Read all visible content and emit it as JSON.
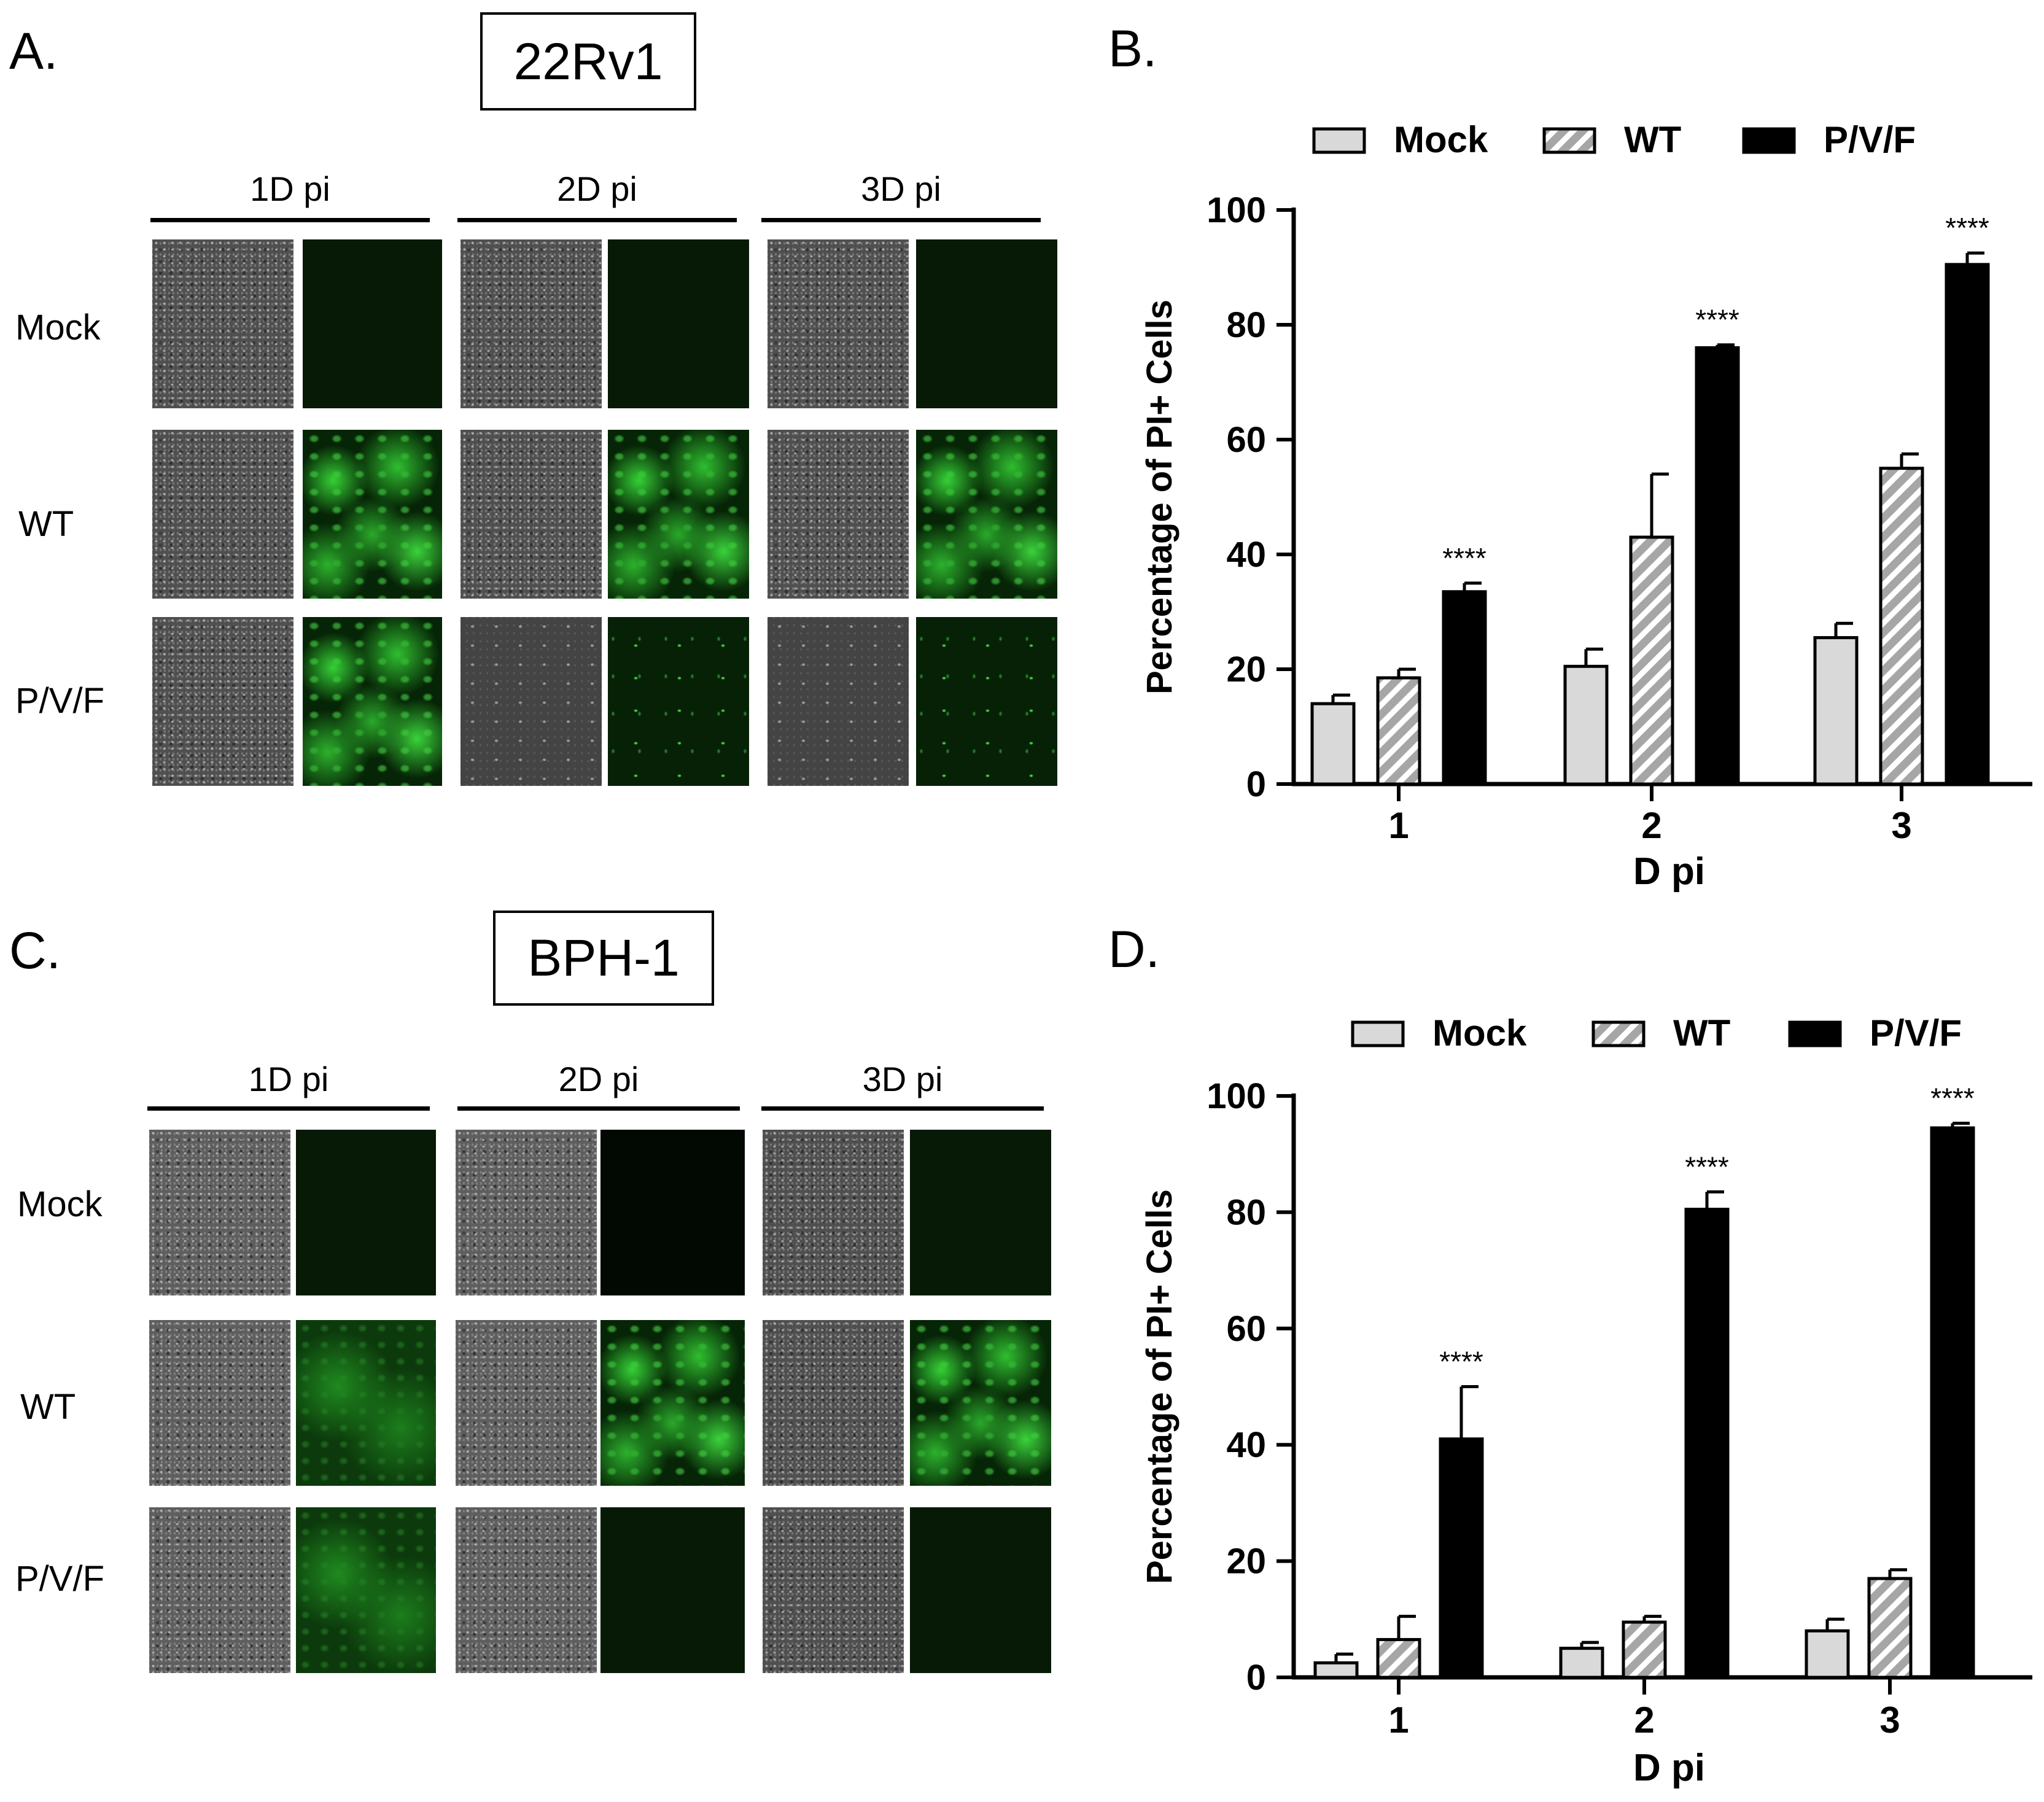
{
  "panel_A": {
    "letter": "A.",
    "cell_line": "22Rv1",
    "columns": [
      "1D pi",
      "2D pi",
      "3D pi"
    ],
    "rows": [
      "Mock",
      "WT",
      "P/V/F"
    ]
  },
  "panel_C": {
    "letter": "C.",
    "cell_line": "BPH-1",
    "columns": [
      "1D pi",
      "2D pi",
      "3D pi"
    ],
    "rows": [
      "Mock",
      "WT",
      "P/V/F"
    ]
  },
  "chart_data": [
    {
      "panel": "B.",
      "type": "bar",
      "xlabel": "D pi",
      "ylabel": "Percentage of PI+ Cells",
      "categories": [
        "1",
        "2",
        "3"
      ],
      "ylim": [
        0,
        100
      ],
      "yticks": [
        0,
        20,
        40,
        60,
        80,
        100
      ],
      "legend_position": "top",
      "series": [
        {
          "name": "Mock",
          "values": [
            14,
            20.5,
            25.5
          ],
          "errors": [
            1.5,
            3,
            2.5
          ],
          "color": "#d9d9d9",
          "pattern": "solid"
        },
        {
          "name": "WT",
          "values": [
            18.5,
            43,
            55
          ],
          "errors": [
            1.5,
            11,
            2.5
          ],
          "color": "#a6a6a6",
          "pattern": "hatch"
        },
        {
          "name": "P/V/F",
          "values": [
            33.5,
            76,
            90.5
          ],
          "errors": [
            1.5,
            0.5,
            2
          ],
          "color": "#000000",
          "pattern": "solid"
        }
      ],
      "annotations": [
        "****",
        "****",
        "****"
      ]
    },
    {
      "panel": "D.",
      "type": "bar",
      "xlabel": "D pi",
      "ylabel": "Percentage of PI+ Cells",
      "categories": [
        "1",
        "2",
        "3"
      ],
      "ylim": [
        0,
        100
      ],
      "yticks": [
        0,
        20,
        40,
        60,
        80,
        100
      ],
      "legend_position": "top",
      "series": [
        {
          "name": "Mock",
          "values": [
            2.5,
            5,
            8
          ],
          "errors": [
            1.5,
            1,
            2
          ],
          "color": "#d9d9d9",
          "pattern": "solid"
        },
        {
          "name": "WT",
          "values": [
            6.5,
            9.5,
            17
          ],
          "errors": [
            4,
            1,
            1.5
          ],
          "color": "#a6a6a6",
          "pattern": "hatch"
        },
        {
          "name": "P/V/F",
          "values": [
            41,
            80.5,
            94.5
          ],
          "errors": [
            9,
            3,
            0.8
          ],
          "color": "#000000",
          "pattern": "solid"
        }
      ],
      "annotations": [
        "****",
        "****",
        "****"
      ]
    }
  ]
}
